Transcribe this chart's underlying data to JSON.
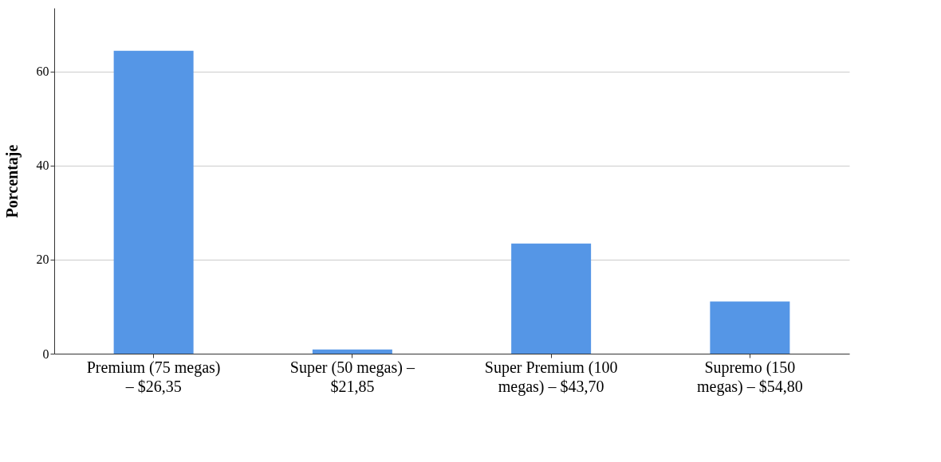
{
  "chart_data": {
    "type": "bar",
    "ylabel": "Porcentaje",
    "categories": [
      "Premium (75 megas) – $26,35",
      "Super (50 megas) – $21,85",
      "Super Premium (100 megas) – $43,70",
      "Supremo (150 megas) – $54,80"
    ],
    "values": [
      64.4,
      0.9,
      23.4,
      11.1
    ],
    "color": "#5596e6",
    "ylim": [
      0,
      73.5
    ],
    "yticks": [
      0,
      20,
      40,
      60
    ],
    "grid": "y"
  }
}
